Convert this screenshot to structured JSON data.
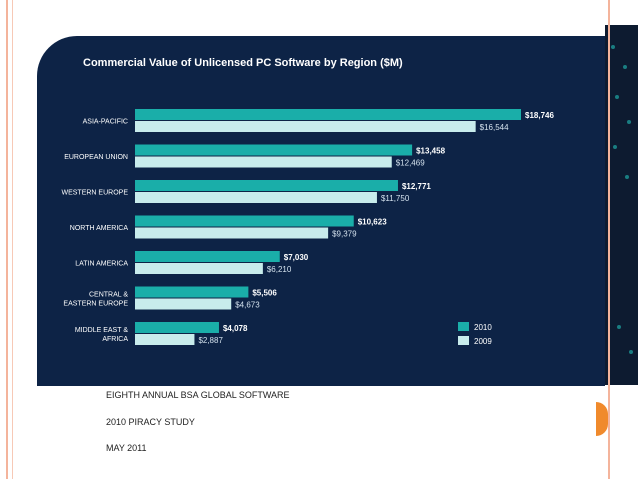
{
  "chart_data": {
    "type": "bar",
    "orientation": "horizontal",
    "title": "Commercial Value of Unlicensed PC Software by Region ($M)",
    "categories": [
      "ASIA-PACIFIC",
      "EUROPEAN UNION",
      "WESTERN EUROPE",
      "NORTH AMERICA",
      "LATIN AMERICA",
      "CENTRAL & EASTERN EUROPE",
      "MIDDLE EAST & AFRICA"
    ],
    "category_lines": [
      [
        "ASIA-PACIFIC"
      ],
      [
        "EUROPEAN UNION"
      ],
      [
        "WESTERN EUROPE"
      ],
      [
        "NORTH AMERICA"
      ],
      [
        "LATIN AMERICA"
      ],
      [
        "CENTRAL &",
        "EASTERN EUROPE"
      ],
      [
        "MIDDLE EAST &",
        "AFRICA"
      ]
    ],
    "series": [
      {
        "name": "2010",
        "values": [
          18746,
          13458,
          12771,
          10623,
          7030,
          5506,
          4078
        ],
        "labels": [
          "$18,746",
          "$13,458",
          "$12,771",
          "$10,623",
          "$7,030",
          "$5,506",
          "$4,078"
        ],
        "color": "#1aaea9"
      },
      {
        "name": "2009",
        "values": [
          16544,
          12469,
          11750,
          9379,
          6210,
          4673,
          2887
        ],
        "labels": [
          "$16,544",
          "$12,469",
          "$11,750",
          "$9,379",
          "$6,210",
          "$4,673",
          "$2,887"
        ],
        "color": "#c8ecec"
      }
    ],
    "xlim": [
      0,
      18746
    ],
    "legend": "bottom-right"
  },
  "captions": {
    "line1": "EIGHTH ANNUAL BSA GLOBAL SOFTWARE",
    "line2": "2010 PIRACY STUDY",
    "line3": "MAY 2011"
  },
  "colors": {
    "panel": "#0d2346",
    "series_2010": "#1aaea9",
    "series_2009": "#c8ecec",
    "label_2010": "#ffffff",
    "label_2009": "#d4e2ee"
  }
}
